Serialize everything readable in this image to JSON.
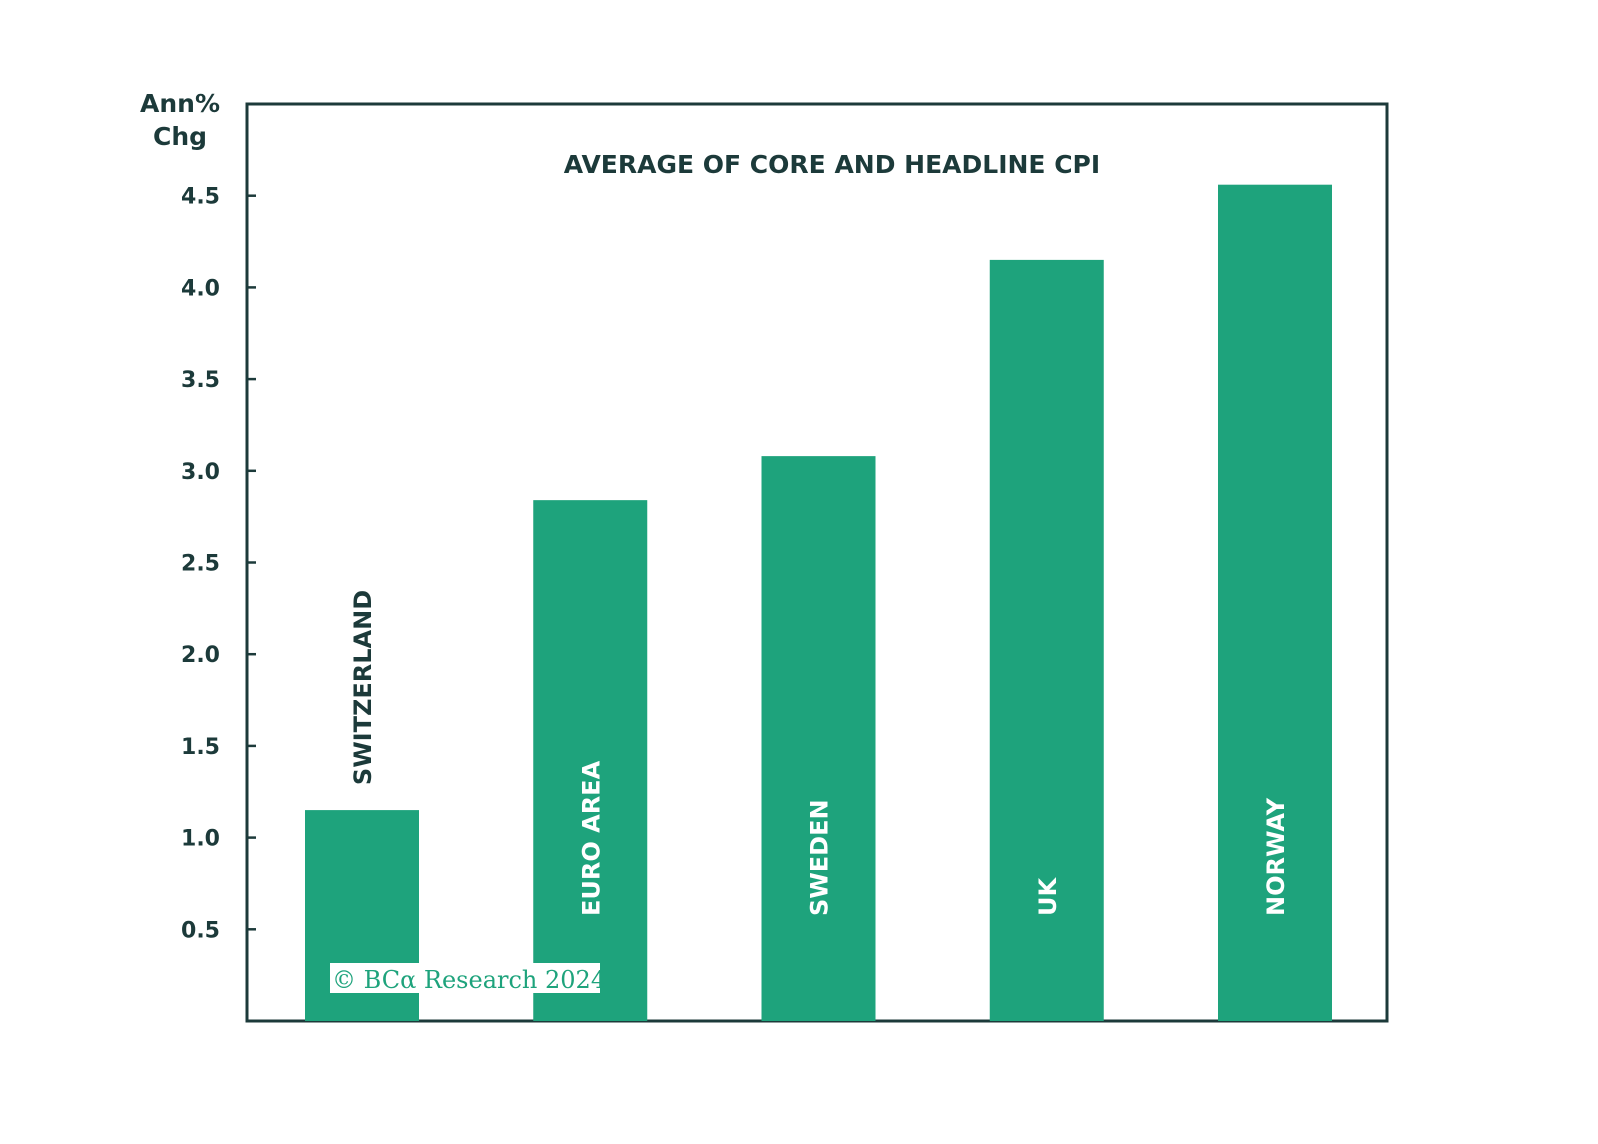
{
  "chart_data": {
    "type": "bar",
    "title": "AVERAGE OF CORE AND HEADLINE CPI",
    "ylabel_lines": [
      "Ann%",
      "Chg"
    ],
    "categories": [
      "SWITZERLAND",
      "EURO AREA",
      "SWEDEN",
      "UK",
      "NORWAY"
    ],
    "values": [
      1.15,
      2.84,
      3.08,
      4.15,
      4.56
    ],
    "ylim": [
      0,
      5.0
    ],
    "yticks": [
      0.5,
      1.0,
      1.5,
      2.0,
      2.5,
      3.0,
      3.5,
      4.0,
      4.5
    ],
    "ytick_labels": [
      "0.5",
      "1.0",
      "1.5",
      "2.0",
      "2.5",
      "3.0",
      "3.5",
      "4.0",
      "4.5"
    ],
    "grid": false,
    "bar_color": "#1ea37c",
    "label_color_inside": "#ffffff",
    "label_color_outside": "#1c3a3a"
  },
  "watermark": "© BCα Research 2024"
}
